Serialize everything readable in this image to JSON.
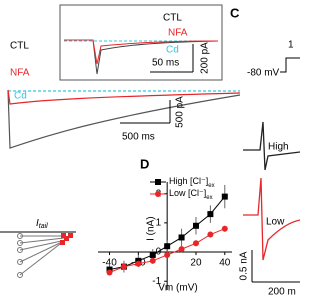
{
  "panel_a": {
    "trace_labels": [
      "CTL",
      "NFA",
      "Cd"
    ],
    "scale_time": "500 ms",
    "scale_current": "500 pA",
    "inset": {
      "trace_labels": [
        "CTL",
        "NFA",
        "Cd"
      ],
      "scale_time": "50 ms",
      "scale_current": "200 pA"
    }
  },
  "panel_b": {
    "label_main": "I",
    "label_sub": "tail"
  },
  "panel_c": {
    "letter": "C",
    "holding": "-80 mV",
    "step": "1",
    "trace_labels": [
      "High",
      "Low"
    ],
    "scale_current": "0.5 nA",
    "scale_time": "200 m"
  },
  "panel_d": {
    "letter": "D",
    "x_label": "Vm (mV)",
    "y_label": "I (nA)",
    "x": [
      -40,
      -30,
      -20,
      -10,
      0,
      10,
      20,
      30,
      40
    ],
    "xlim": [
      -48,
      45
    ],
    "ylim": [
      -1.3,
      2.4
    ],
    "xticks": [
      -40,
      -20,
      20,
      40
    ],
    "yticks": [
      -1,
      0,
      1,
      2
    ],
    "series": [
      {
        "name": {
          "main": "High [Cl⁻]",
          "sub": "ex"
        },
        "color": "#000000",
        "marker": "square",
        "values": [
          -0.6,
          -0.5,
          -0.3,
          -0.1,
          0.2,
          0.5,
          0.9,
          1.3,
          1.9
        ],
        "errors": [
          0.2,
          0.2,
          0.2,
          0.2,
          0.2,
          0.3,
          0.3,
          0.3,
          0.4
        ]
      },
      {
        "name": {
          "main": "Low [Cl⁻]",
          "sub": "ex"
        },
        "color": "#e8262a",
        "marker": "circle",
        "values": [
          -0.7,
          -0.5,
          -0.4,
          -0.3,
          -0.1,
          0.1,
          0.3,
          0.6,
          0.8
        ],
        "errors": [
          0.1,
          0.1,
          0.1,
          0.1,
          0.1,
          0.1,
          0.1,
          0.1,
          0.1
        ]
      }
    ]
  }
}
